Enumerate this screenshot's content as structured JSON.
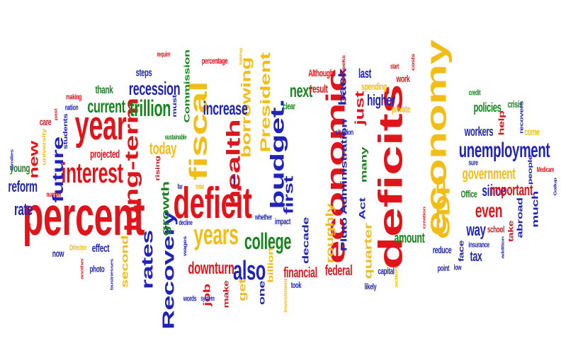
{
  "palette": {
    "red": "#e0151b",
    "blue": "#1f23b8",
    "green": "#16841c",
    "yellow": "#f2bd17",
    "background": "#ffffff"
  },
  "words": [
    {
      "id": "percent",
      "text": "percent",
      "color": "red"
    },
    {
      "id": "deficits",
      "text": "deficits",
      "color": "red"
    },
    {
      "id": "economic",
      "text": "economic",
      "color": "red"
    },
    {
      "id": "economy",
      "text": "economy",
      "color": "yellow"
    },
    {
      "id": "deficit",
      "text": "deficit",
      "color": "red"
    },
    {
      "id": "year",
      "text": "year",
      "color": "red"
    },
    {
      "id": "fiscal",
      "text": "fiscal",
      "color": "yellow"
    },
    {
      "id": "GDP",
      "text": "GDP",
      "color": "yellow"
    },
    {
      "id": "unemployment",
      "text": "unemployment",
      "color": "blue"
    },
    {
      "id": "long-term",
      "text": "long-term",
      "color": "red"
    },
    {
      "id": "health",
      "text": "health",
      "color": "red"
    },
    {
      "id": "budget",
      "text": "budget.",
      "color": "blue"
    },
    {
      "id": "interest",
      "text": "interest",
      "color": "red"
    },
    {
      "id": "years",
      "text": "years",
      "color": "yellow"
    },
    {
      "id": "college",
      "text": "college",
      "color": "green"
    },
    {
      "id": "Recovery",
      "text": "Recovery",
      "color": "blue"
    },
    {
      "id": "trillion",
      "text": "trillion",
      "color": "green"
    },
    {
      "id": "President",
      "text": "President",
      "color": "yellow"
    },
    {
      "id": "borrowing",
      "text": "borrowing",
      "color": "yellow"
    },
    {
      "id": "increase",
      "text": "increase",
      "color": "blue"
    },
    {
      "id": "recession",
      "text": "recession",
      "color": "blue"
    },
    {
      "id": "current",
      "text": "current",
      "color": "green"
    },
    {
      "id": "also",
      "text": "also",
      "color": "blue"
    },
    {
      "id": "rates",
      "text": "rates",
      "color": "blue"
    },
    {
      "id": "downturn",
      "text": "downturn",
      "color": "red"
    },
    {
      "id": "future",
      "text": "future",
      "color": "blue"
    },
    {
      "id": "reform",
      "text": "reform",
      "color": "blue"
    },
    {
      "id": "rate",
      "text": "rate",
      "color": "blue"
    },
    {
      "id": "new",
      "text": "new",
      "color": "red"
    },
    {
      "id": "today",
      "text": "today",
      "color": "yellow"
    },
    {
      "id": "growth",
      "text": "growth",
      "color": "green"
    },
    {
      "id": "Commission",
      "text": "Commission",
      "color": "green"
    },
    {
      "id": "first",
      "text": "first",
      "color": "blue"
    },
    {
      "id": "next",
      "text": "next",
      "color": "green"
    },
    {
      "id": "just",
      "text": "just",
      "color": "red"
    },
    {
      "id": "back",
      "text": "back",
      "color": "blue"
    },
    {
      "id": "higher",
      "text": "higher",
      "color": "blue"
    },
    {
      "id": "result",
      "text": "result",
      "color": "red"
    },
    {
      "id": "Pluto",
      "text": "Pluto Administration",
      "color": "blue"
    },
    {
      "id": "roughly",
      "text": "roughly",
      "color": "yellow"
    },
    {
      "id": "quarter",
      "text": "quarter",
      "color": "yellow"
    },
    {
      "id": "Act",
      "text": "Act",
      "color": "blue"
    },
    {
      "id": "many",
      "text": "many",
      "color": "green"
    },
    {
      "id": "amount",
      "text": "amount",
      "color": "green"
    },
    {
      "id": "decade",
      "text": "decade",
      "color": "blue"
    },
    {
      "id": "financial",
      "text": "financial",
      "color": "red"
    },
    {
      "id": "federal",
      "text": "federal",
      "color": "red"
    },
    {
      "id": "one",
      "text": "one",
      "color": "blue"
    },
    {
      "id": "billion",
      "text": "billion",
      "color": "yellow"
    },
    {
      "id": "even",
      "text": "even",
      "color": "red"
    },
    {
      "id": "since",
      "text": "since",
      "color": "blue"
    },
    {
      "id": "way",
      "text": "way",
      "color": "blue"
    },
    {
      "id": "important",
      "text": "important",
      "color": "red"
    },
    {
      "id": "government",
      "text": "government",
      "color": "yellow"
    },
    {
      "id": "workers",
      "text": "workers",
      "color": "blue"
    },
    {
      "id": "policies",
      "text": "policies",
      "color": "green"
    },
    {
      "id": "much",
      "text": "much",
      "color": "blue"
    },
    {
      "id": "abroad",
      "text": "abroad",
      "color": "blue"
    },
    {
      "id": "take",
      "text": "take",
      "color": "red"
    },
    {
      "id": "job",
      "text": "job",
      "color": "red"
    },
    {
      "id": "get",
      "text": "get",
      "color": "yellow"
    },
    {
      "id": "make",
      "text": "make",
      "color": "red"
    },
    {
      "id": "second",
      "text": "second",
      "color": "yellow"
    },
    {
      "id": "effect",
      "text": "effect",
      "color": "blue"
    },
    {
      "id": "now",
      "text": "now",
      "color": "blue"
    },
    {
      "id": "photo",
      "text": "photo",
      "color": "blue"
    },
    {
      "id": "Director",
      "text": "Director",
      "color": "yellow"
    },
    {
      "id": "projected",
      "text": "projected",
      "color": "red"
    },
    {
      "id": "thank",
      "text": "thank",
      "color": "green"
    },
    {
      "id": "steps",
      "text": "steps",
      "color": "blue"
    },
    {
      "id": "rising",
      "text": "rising",
      "color": "red"
    },
    {
      "id": "must",
      "text": "must",
      "color": "blue"
    },
    {
      "id": "young",
      "text": "young",
      "color": "green"
    },
    {
      "id": "students",
      "text": "students",
      "color": "blue"
    },
    {
      "id": "university",
      "text": "university",
      "color": "yellow"
    },
    {
      "id": "care",
      "text": "care",
      "color": "red"
    },
    {
      "id": "past",
      "text": "past",
      "color": "red"
    },
    {
      "id": "making",
      "text": "making",
      "color": "red"
    },
    {
      "id": "nation",
      "text": "nation",
      "color": "blue"
    },
    {
      "id": "number",
      "text": "number",
      "color": "red"
    },
    {
      "id": "percentage",
      "text": "percentage",
      "color": "red"
    },
    {
      "id": "require",
      "text": "require",
      "color": "red"
    },
    {
      "id": "taking",
      "text": "taking",
      "color": "yellow"
    },
    {
      "id": "Although",
      "text": "Although",
      "color": "red"
    },
    {
      "id": "weeks",
      "text": "weeks",
      "color": "red"
    },
    {
      "id": "last",
      "text": "last",
      "color": "blue"
    },
    {
      "id": "work",
      "text": "work",
      "color": "red"
    },
    {
      "id": "spending",
      "text": "spending",
      "color": "yellow"
    },
    {
      "id": "clear",
      "text": "clear",
      "color": "green"
    },
    {
      "id": "private",
      "text": "private",
      "color": "yellow"
    },
    {
      "id": "credit",
      "text": "credit",
      "color": "green"
    },
    {
      "id": "crisis",
      "text": "crisis",
      "color": "green"
    },
    {
      "id": "help",
      "text": "help",
      "color": "red"
    },
    {
      "id": "come",
      "text": "come",
      "color": "yellow"
    },
    {
      "id": "recovers",
      "text": "recovers",
      "color": "blue"
    },
    {
      "id": "sure",
      "text": "sure",
      "color": "blue"
    },
    {
      "id": "Medicare",
      "text": "Medicare",
      "color": "red"
    },
    {
      "id": "people",
      "text": "people",
      "color": "blue"
    },
    {
      "id": "Office",
      "text": "Office",
      "color": "green"
    },
    {
      "id": "school",
      "text": "school",
      "color": "red"
    },
    {
      "id": "tax",
      "text": "tax",
      "color": "blue"
    },
    {
      "id": "face",
      "text": "face",
      "color": "blue"
    },
    {
      "id": "insurance",
      "text": "insurance",
      "color": "blue"
    },
    {
      "id": "reduce",
      "text": "reduce",
      "color": "blue"
    },
    {
      "id": "point",
      "text": "point",
      "color": "blue"
    },
    {
      "id": "low",
      "text": "low",
      "color": "blue"
    },
    {
      "id": "capital",
      "text": "capital",
      "color": "blue"
    },
    {
      "id": "action",
      "text": "action",
      "color": "yellow"
    },
    {
      "id": "likely",
      "text": "likely",
      "color": "blue"
    },
    {
      "id": "took",
      "text": "took",
      "color": "blue"
    },
    {
      "id": "investment",
      "text": "investment",
      "color": "yellow"
    },
    {
      "id": "impact",
      "text": "impact",
      "color": "blue"
    },
    {
      "id": "whether",
      "text": "whether",
      "color": "blue"
    },
    {
      "id": "half",
      "text": "half",
      "color": "blue"
    },
    {
      "id": "words",
      "text": "words",
      "color": "blue"
    },
    {
      "id": "system",
      "text": "system",
      "color": "blue"
    },
    {
      "id": "wages",
      "text": "wages",
      "color": "blue"
    },
    {
      "id": "decline",
      "text": "decline",
      "color": "blue"
    },
    {
      "id": "total",
      "text": "total",
      "color": "yellow"
    },
    {
      "id": "far",
      "text": "far",
      "color": "blue"
    },
    {
      "id": "sustainable",
      "text": "sustainable",
      "color": "green"
    },
    {
      "id": "situation",
      "text": "situation",
      "color": "blue"
    },
    {
      "id": "Let",
      "text": "Let",
      "color": "red"
    },
    {
      "id": "another",
      "text": "another",
      "color": "red"
    },
    {
      "id": "businesses",
      "text": "businesses",
      "color": "blue"
    },
    {
      "id": "families",
      "text": "families",
      "color": "blue"
    },
    {
      "id": "Gallup",
      "text": "Gallup",
      "color": "blue"
    },
    {
      "id": "addition",
      "text": "addition",
      "color": "blue"
    },
    {
      "id": "creation",
      "text": "creation",
      "color": "red"
    },
    {
      "id": "start",
      "text": "start",
      "color": "red"
    },
    {
      "id": "costs",
      "text": "costs",
      "color": "red"
    }
  ]
}
